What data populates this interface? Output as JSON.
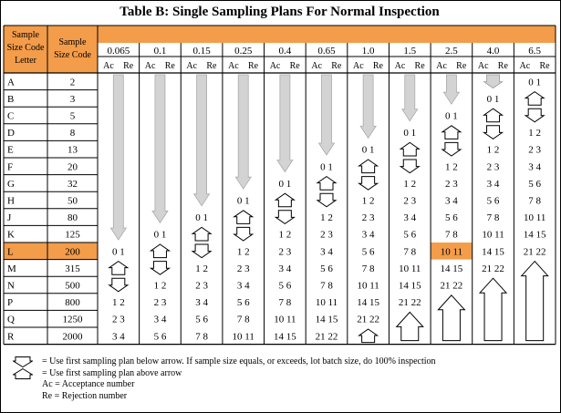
{
  "title": "Table B: Single Sampling Plans For Normal Inspection",
  "headers": {
    "code_letter": [
      "Sample",
      "Size Code",
      "Letter"
    ],
    "sample_size": [
      "Sample",
      "Size Code"
    ],
    "ac": "Ac",
    "re": "Re"
  },
  "aql_levels": [
    "0.065",
    "0.1",
    "0.15",
    "0.25",
    "0.4",
    "0.65",
    "1.0",
    "1.5",
    "2.5",
    "4.0",
    "6.5"
  ],
  "highlight": {
    "row_letter": "L",
    "aql": "2.5",
    "color": "#f39c4a"
  },
  "header_color": "#f39c4a",
  "rows": [
    {
      "letter": "A",
      "size": "2",
      "cells": [
        "down",
        "down",
        "down",
        "down",
        "down",
        "down",
        "down",
        "down",
        "down",
        "down",
        "0 1"
      ]
    },
    {
      "letter": "B",
      "size": "3",
      "cells": [
        "down",
        "down",
        "down",
        "down",
        "down",
        "down",
        "down",
        "down",
        "down",
        "0 1",
        "up"
      ]
    },
    {
      "letter": "C",
      "size": "5",
      "cells": [
        "down",
        "down",
        "down",
        "down",
        "down",
        "down",
        "down",
        "down",
        "0 1",
        "up",
        "down"
      ]
    },
    {
      "letter": "D",
      "size": "8",
      "cells": [
        "down",
        "down",
        "down",
        "down",
        "down",
        "down",
        "down",
        "0 1",
        "up",
        "down",
        "1 2"
      ]
    },
    {
      "letter": "E",
      "size": "13",
      "cells": [
        "down",
        "down",
        "down",
        "down",
        "down",
        "down",
        "0 1",
        "up",
        "down",
        "1 2",
        "2 3"
      ]
    },
    {
      "letter": "F",
      "size": "20",
      "cells": [
        "down",
        "down",
        "down",
        "down",
        "down",
        "0 1",
        "up",
        "down",
        "1 2",
        "2 3",
        "3 4"
      ]
    },
    {
      "letter": "G",
      "size": "32",
      "cells": [
        "down",
        "down",
        "down",
        "down",
        "0 1",
        "up",
        "down",
        "1 2",
        "2 3",
        "3 4",
        "5 6"
      ]
    },
    {
      "letter": "H",
      "size": "50",
      "cells": [
        "down",
        "down",
        "down",
        "0 1",
        "up",
        "down",
        "1 2",
        "2 3",
        "3 4",
        "5 6",
        "7 8"
      ]
    },
    {
      "letter": "J",
      "size": "80",
      "cells": [
        "down",
        "down",
        "0 1",
        "up",
        "down",
        "1 2",
        "2 3",
        "3 4",
        "5 6",
        "7 8",
        "10 11"
      ]
    },
    {
      "letter": "K",
      "size": "125",
      "cells": [
        "down",
        "0 1",
        "up",
        "down",
        "1 2",
        "2 3",
        "3 4",
        "5 6",
        "7 8",
        "10 11",
        "14 15"
      ]
    },
    {
      "letter": "L",
      "size": "200",
      "cells": [
        "0 1",
        "up",
        "down",
        "1 2",
        "2 3",
        "3 4",
        "5 6",
        "7 8",
        "10 11",
        "14 15",
        "21 22"
      ]
    },
    {
      "letter": "M",
      "size": "315",
      "cells": [
        "up",
        "down",
        "1 2",
        "2 3",
        "3 4",
        "5 6",
        "7 8",
        "10 11",
        "14 15",
        "21 22",
        "up"
      ]
    },
    {
      "letter": "N",
      "size": "500",
      "cells": [
        "down",
        "1 2",
        "2 3",
        "3 4",
        "5 6",
        "7 8",
        "10 11",
        "14 15",
        "21 22",
        "up",
        "up"
      ]
    },
    {
      "letter": "P",
      "size": "800",
      "cells": [
        "1 2",
        "2 3",
        "3 4",
        "5 6",
        "7 8",
        "10 11",
        "14 15",
        "21 22",
        "up",
        "up",
        "up"
      ]
    },
    {
      "letter": "Q",
      "size": "1250",
      "cells": [
        "2 3",
        "3 4",
        "5 6",
        "7 8",
        "10 11",
        "14 15",
        "21 22",
        "up",
        "up",
        "up",
        "up"
      ]
    },
    {
      "letter": "R",
      "size": "2000",
      "cells": [
        "3 4",
        "5 6",
        "7 8",
        "10 11",
        "14 15",
        "21 22",
        "up",
        "up",
        "up",
        "up",
        "up"
      ]
    }
  ],
  "legend": [
    {
      "icon": "down-arrow-icon",
      "text": "= Use first sampling plan below arrow. If sample size equals, or exceeds, lot batch size, do 100% inspection"
    },
    {
      "icon": "up-arrow-icon",
      "text": "= Use first sampling plan above arrow"
    },
    {
      "icon": "",
      "text": "Ac = Acceptance number"
    },
    {
      "icon": "",
      "text": "Re = Rejection number"
    }
  ]
}
